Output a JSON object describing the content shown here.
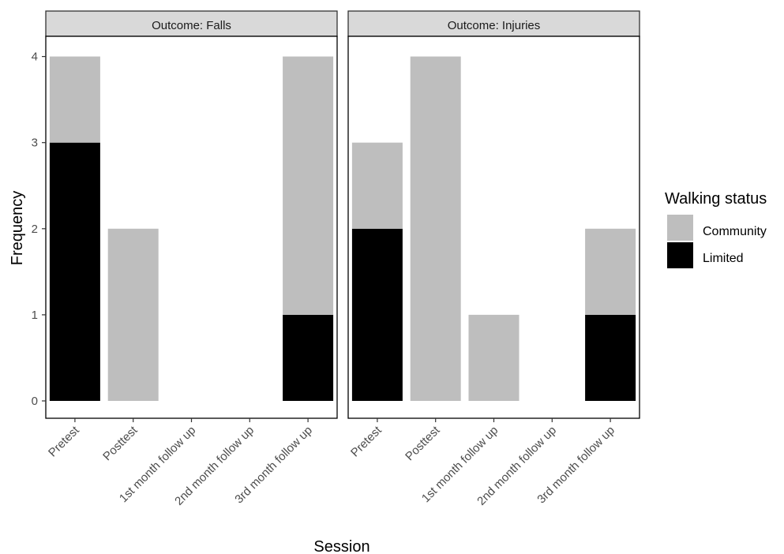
{
  "chart_data": {
    "type": "bar",
    "stacked": true,
    "facets": [
      {
        "strip": "Outcome: Falls",
        "series": [
          {
            "name": "Limited",
            "values": [
              3,
              0,
              0,
              0,
              1
            ]
          },
          {
            "name": "Community",
            "values": [
              1,
              2,
              0,
              0,
              3
            ]
          }
        ]
      },
      {
        "strip": "Outcome: Injuries",
        "series": [
          {
            "name": "Limited",
            "values": [
              2,
              0,
              0,
              0,
              1
            ]
          },
          {
            "name": "Community",
            "values": [
              1,
              4,
              1,
              0,
              1
            ]
          }
        ]
      }
    ],
    "categories": [
      "Pretest",
      "Posttest",
      "1st month follow up",
      "2nd month follow up",
      "3rd month follow up"
    ],
    "xlabel": "Session",
    "ylabel": "Frequency",
    "yticks": [
      0,
      1,
      2,
      3,
      4
    ],
    "ylim": [
      -0.2,
      4.3
    ],
    "grid": false,
    "legend": {
      "title": "Walking status",
      "position": "right",
      "entries": [
        {
          "label": "Community",
          "color": "#bebebe"
        },
        {
          "label": "Limited",
          "color": "#000000"
        }
      ]
    },
    "colors": {
      "Community": "#bebebe",
      "Limited": "#000000"
    }
  }
}
